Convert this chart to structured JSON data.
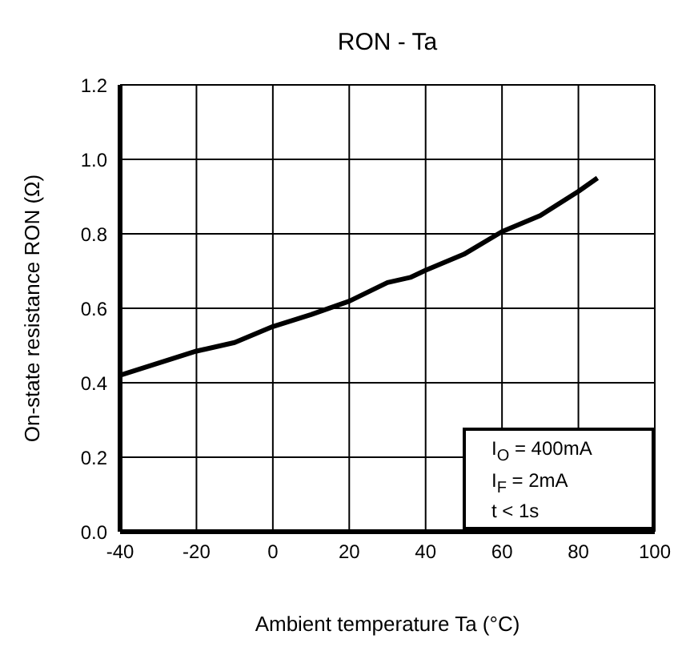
{
  "chart_data": {
    "type": "line",
    "title": "RON - Ta",
    "xlabel": "Ambient temperature Ta (°C)",
    "ylabel": "On-state resistance RON (Ω)",
    "x": [
      -40,
      -20,
      -10,
      0,
      10,
      20,
      30,
      36,
      40,
      50,
      60,
      70,
      80,
      85
    ],
    "series": [
      {
        "color": "#000000",
        "values": [
          0.42,
          0.485,
          0.508,
          0.551,
          0.583,
          0.619,
          0.669,
          0.683,
          0.702,
          0.745,
          0.806,
          0.849,
          0.914,
          0.95
        ]
      }
    ],
    "xlim": [
      -40,
      100
    ],
    "xticks": [
      -40,
      -20,
      0,
      20,
      40,
      60,
      80,
      100
    ],
    "ylim": [
      0,
      1.2
    ],
    "yticks": [
      "0.0",
      0.2,
      0.4,
      0.6,
      0.8,
      "1.0",
      1.2
    ],
    "grid": true,
    "marker": "none",
    "line_style": "solid",
    "annotations": [
      "I$_{O}$ = 400mA",
      "I$_{F}$ = 2mA",
      "t < 1s"
    ]
  }
}
